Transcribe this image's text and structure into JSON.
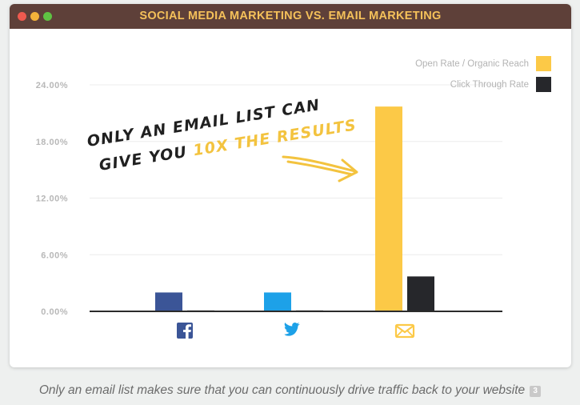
{
  "window": {
    "title": "SOCIAL MEDIA MARKETING VS. EMAIL MARKETING"
  },
  "colors": {
    "open_rate": "#fcc947",
    "click_through": "#26272b",
    "facebook_bar": "#3b5597",
    "twitter_bar": "#1da1e8"
  },
  "chart_data": {
    "type": "bar",
    "categories": [
      "facebook",
      "twitter",
      "email"
    ],
    "category_icons": [
      "facebook-icon",
      "twitter-icon",
      "email-icon"
    ],
    "series": [
      {
        "name": "Open Rate / Organic Reach",
        "values": [
          2.0,
          2.0,
          21.7
        ],
        "colors": [
          "#3b5597",
          "#1da1e8",
          "#fcc947"
        ]
      },
      {
        "name": "Click Through Rate",
        "values": [
          0.1,
          0.1,
          3.7
        ],
        "colors": [
          "#26272b",
          "#26272b",
          "#26272b"
        ]
      }
    ],
    "ylim": [
      0,
      24
    ],
    "yticks": [
      0,
      6,
      12,
      18,
      24
    ],
    "ytick_labels": [
      "0.00%",
      "6.00%",
      "12.00%",
      "18.00%",
      "24.00%"
    ],
    "grid": true,
    "legend": "top-right",
    "annotation": {
      "line1": "ONLY AN EMAIL LIST CAN",
      "line2_prefix": "GIVE YOU ",
      "line2_highlight": "10X THE RESULTS"
    }
  },
  "caption": {
    "text": "Only an email list makes sure that you can continuously drive traffic back to your website",
    "badge": "3"
  }
}
